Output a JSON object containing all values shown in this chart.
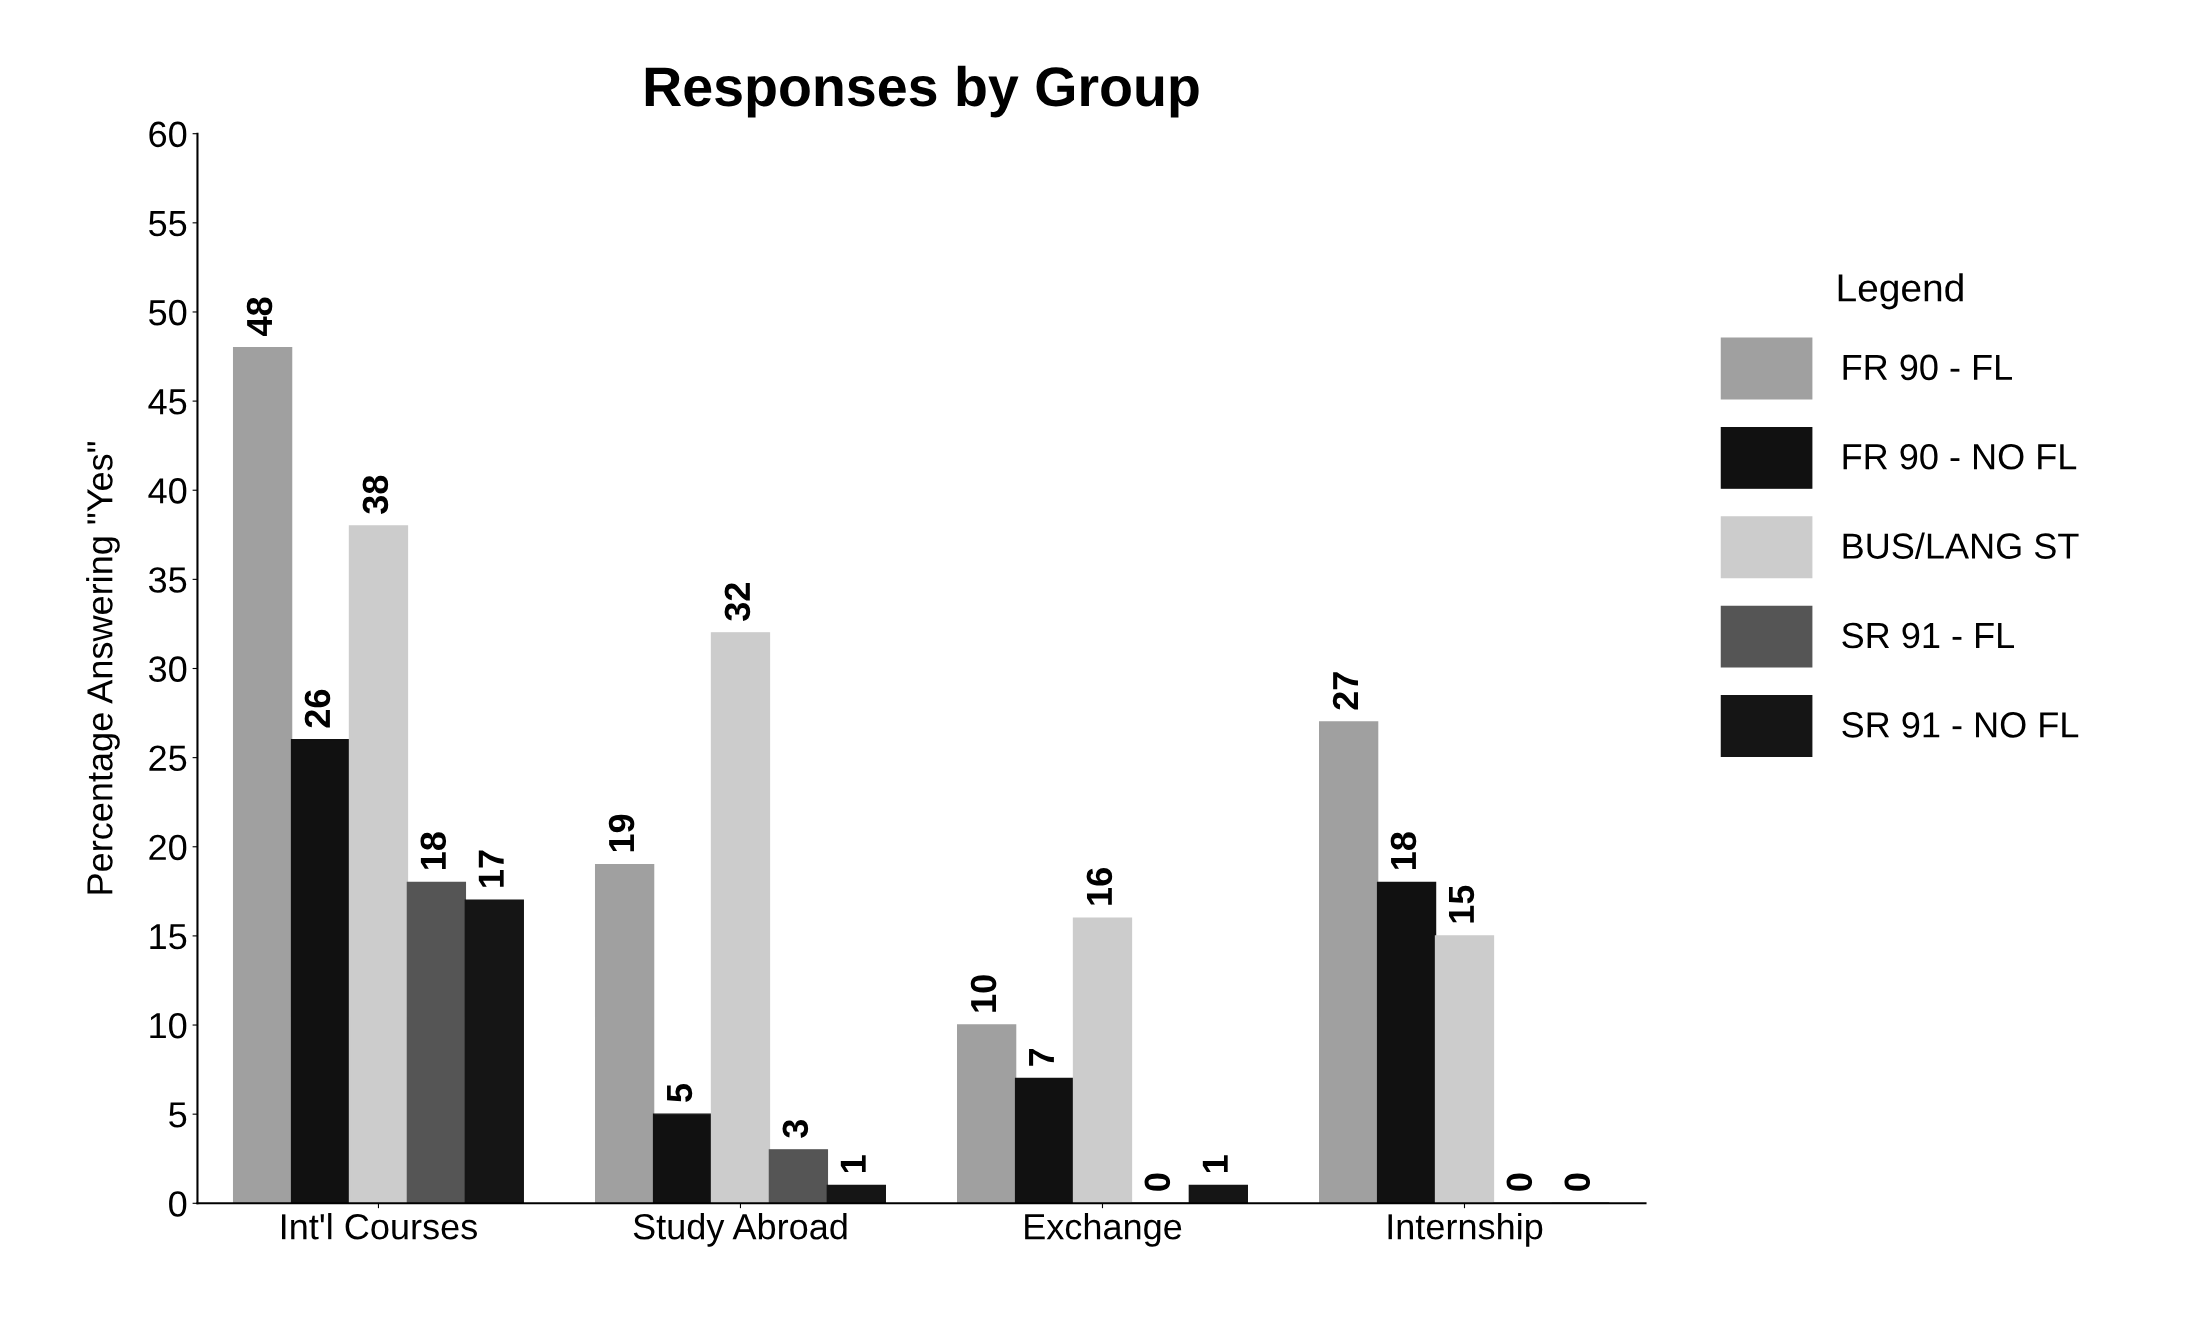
{
  "chart_data": {
    "type": "bar",
    "title": "Responses by Group",
    "ylabel": "Percentage Answering \"Yes\"",
    "legend_title": "Legend",
    "categories": [
      "Int'l Courses",
      "Study Abroad",
      "Exchange",
      "Internship"
    ],
    "series": [
      {
        "name": "FR 90 - FL",
        "color": "#a0a0a0",
        "values": [
          48,
          19,
          10,
          27
        ]
      },
      {
        "name": "FR 90 - NO FL",
        "color": "#111111",
        "values": [
          26,
          5,
          7,
          18
        ]
      },
      {
        "name": "BUS/LANG ST",
        "color": "#cccccc",
        "values": [
          38,
          32,
          16,
          15
        ]
      },
      {
        "name": "SR 91 - FL",
        "color": "#555555",
        "values": [
          18,
          3,
          0,
          0
        ]
      },
      {
        "name": "SR 91 - NO FL",
        "color": "#151515",
        "values": [
          17,
          1,
          1,
          0
        ]
      }
    ],
    "ylim": [
      0,
      60
    ],
    "yticks": [
      0,
      5,
      10,
      15,
      20,
      25,
      30,
      35,
      40,
      45,
      50,
      55,
      60
    ],
    "data_labels": true,
    "legend": "right",
    "grid": false
  }
}
